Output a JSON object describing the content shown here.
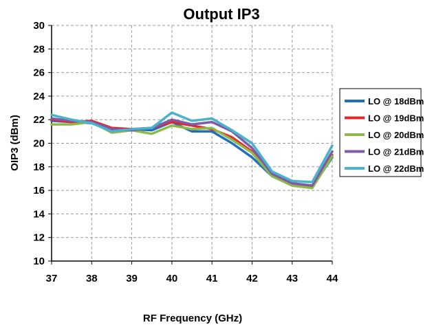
{
  "chart_data": {
    "type": "line",
    "title": "Output IP3",
    "xlabel": "RF Frequency (GHz)",
    "ylabel": "OIP3 (dBm)",
    "xlim": [
      37,
      44
    ],
    "ylim": [
      10,
      30
    ],
    "x_ticks": [
      37,
      38,
      39,
      40,
      41,
      42,
      43,
      44
    ],
    "y_ticks": [
      10,
      12,
      14,
      16,
      18,
      20,
      22,
      24,
      26,
      28,
      30
    ],
    "grid": "dashed",
    "legend_position": "right",
    "x": [
      37,
      37.5,
      38,
      38.5,
      39,
      39.5,
      40,
      40.5,
      41,
      41.5,
      42,
      42.5,
      43,
      43.5,
      44
    ],
    "series": [
      {
        "name": "LO @ 18dBm",
        "color": "#1f6fbf",
        "values": [
          21.9,
          21.8,
          21.7,
          21.1,
          21.2,
          21.1,
          21.8,
          21.0,
          21.0,
          20.0,
          18.8,
          17.2,
          16.5,
          16.3,
          18.8
        ]
      },
      {
        "name": "LO @ 19dBm",
        "color": "#e8262a",
        "values": [
          22.0,
          21.8,
          21.9,
          21.3,
          21.2,
          21.3,
          21.8,
          21.5,
          21.2,
          20.5,
          19.3,
          17.3,
          16.6,
          16.4,
          19.0
        ]
      },
      {
        "name": "LO @ 20dBm",
        "color": "#8fb84a",
        "values": [
          21.6,
          21.6,
          21.8,
          20.9,
          21.1,
          20.8,
          21.5,
          21.2,
          21.3,
          20.3,
          19.2,
          17.2,
          16.4,
          16.2,
          18.9
        ]
      },
      {
        "name": "LO @ 21dBm",
        "color": "#7d5ba6",
        "values": [
          22.1,
          21.9,
          21.8,
          21.2,
          21.1,
          21.3,
          22.0,
          21.6,
          21.8,
          21.0,
          19.6,
          17.4,
          16.6,
          16.4,
          19.3
        ]
      },
      {
        "name": "LO @ 22dBm",
        "color": "#47b3cc",
        "values": [
          22.4,
          22.0,
          21.7,
          21.0,
          21.2,
          21.3,
          22.6,
          21.9,
          22.1,
          21.1,
          20.0,
          17.6,
          16.8,
          16.7,
          19.8
        ]
      }
    ]
  }
}
